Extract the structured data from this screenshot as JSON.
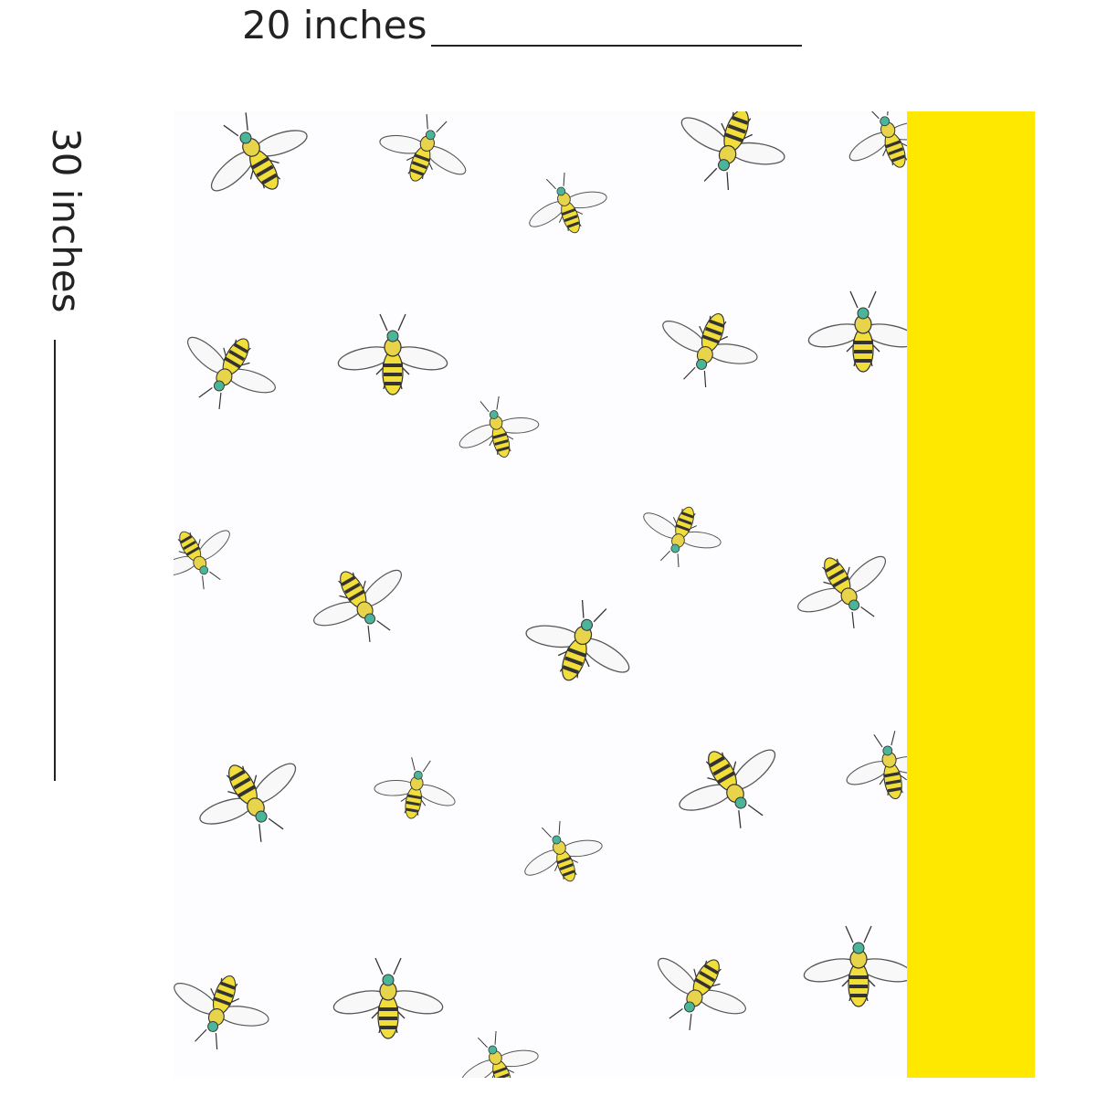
{
  "width_label": "20 inches",
  "height_label": "30 inches"
}
